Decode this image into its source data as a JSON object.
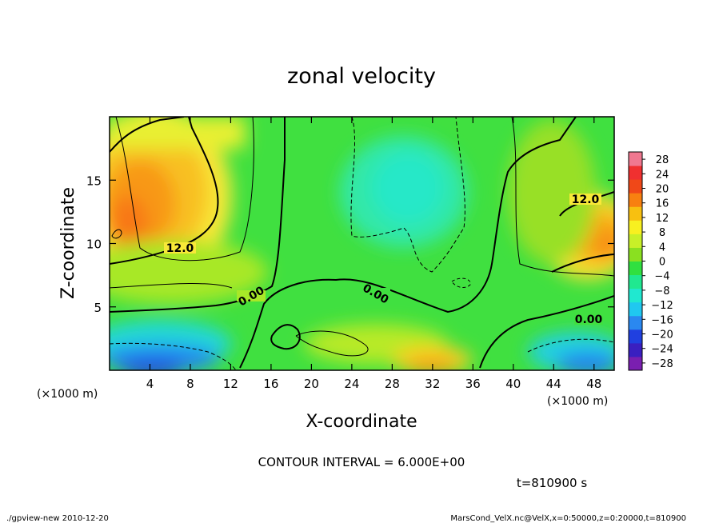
{
  "chart_data": {
    "type": "heatmap",
    "title": "zonal velocity",
    "xlabel": "X-coordinate",
    "ylabel": "Z-coordinate",
    "x_unit": "(×1000 m)",
    "y_unit": "(×1000 m)",
    "xlim": [
      0,
      50
    ],
    "ylim": [
      0,
      20
    ],
    "x_ticks": [
      "4",
      "8",
      "12",
      "16",
      "20",
      "24",
      "28",
      "32",
      "36",
      "40",
      "44",
      "48"
    ],
    "y_ticks": [
      "5",
      "10",
      "15"
    ],
    "colorbar": {
      "range": [
        -30,
        30
      ],
      "ticks": [
        "28",
        "24",
        "20",
        "16",
        "12",
        "8",
        "4",
        "0",
        "−4",
        "−8",
        "−12",
        "−16",
        "−20",
        "−24",
        "−28"
      ],
      "colors": [
        "#7a1fb0",
        "#3a1fc0",
        "#2040e0",
        "#2a88f0",
        "#20c8f0",
        "#20e8d0",
        "#20e890",
        "#30e040",
        "#8ae020",
        "#c8f028",
        "#f8f020",
        "#f8c010",
        "#f88010",
        "#f04818",
        "#f03030",
        "#f07890"
      ]
    },
    "contour_labels": [
      "12.0",
      "12.0",
      "0.00",
      "0.00",
      "0.00"
    ],
    "contour_interval": "CONTOUR INTERVAL = 6.000E+00",
    "time": "t=810900 s"
  },
  "footer": {
    "left": "./gpview-new   2010-12-20",
    "right": "MarsCond_VelX.nc@VelX,x=0:50000,z=0:20000,t=810900"
  }
}
